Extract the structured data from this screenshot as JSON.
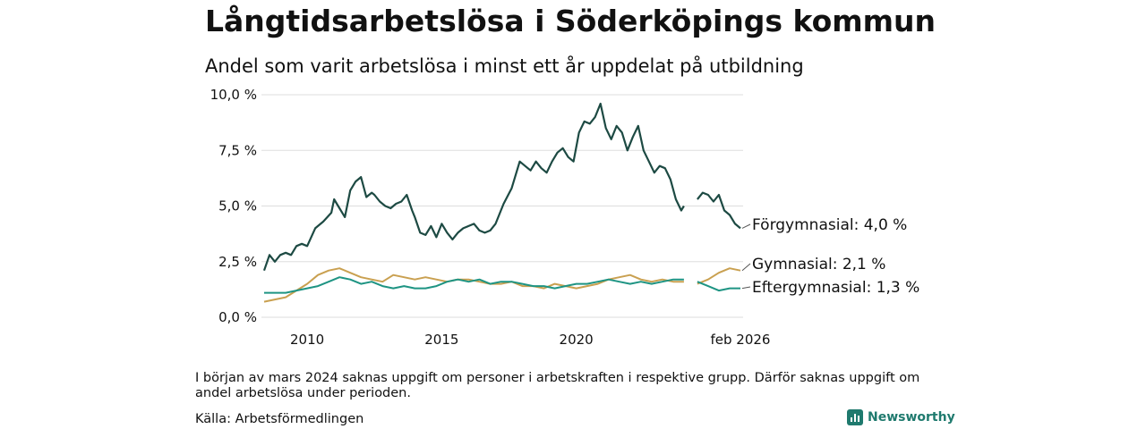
{
  "title": "Långtidsarbetslösa i Söderköpings kommun",
  "subtitle": "Andel som varit arbetslösa i minst ett år uppdelat på utbildning",
  "note": "I början av mars 2024 saknas uppgift om personer i arbetskraften i respektive grupp. Därför saknas uppgift om andel arbetslösa under perioden.",
  "source": "Källa: Arbetsförmedlingen",
  "brand": "Newsworthy",
  "colors": {
    "forgymnasial": "#1d4a43",
    "gymnasial": "#c9a050",
    "eftergymnasial": "#1e9483",
    "grid": "#dddddd",
    "brand": "#1f7a6e"
  },
  "chart_data": {
    "type": "line",
    "title": "Långtidsarbetslösa i Söderköpings kommun",
    "ylabel": "",
    "xlabel": "",
    "ylim": [
      0,
      10
    ],
    "xlim": [
      2008.3,
      2026.2
    ],
    "y_ticks": [
      0,
      2.5,
      5,
      7.5,
      10
    ],
    "y_tick_labels": [
      "0,0 %",
      "2,5 %",
      "5,0 %",
      "7,5 %",
      "10,0 %"
    ],
    "x_ticks": [
      2010,
      2015,
      2020,
      2026.1
    ],
    "x_tick_labels": [
      "2010",
      "2015",
      "2020",
      "feb 2026"
    ],
    "gap": [
      2024.1,
      2024.4
    ],
    "series": [
      {
        "name": "Förgymnasial",
        "end_label": "Förgymnasial: 4,0 %",
        "color_key": "forgymnasial",
        "x": [
          2008.4,
          2008.6,
          2008.8,
          2009.0,
          2009.2,
          2009.4,
          2009.6,
          2009.8,
          2010.0,
          2010.3,
          2010.6,
          2010.9,
          2011.0,
          2011.2,
          2011.4,
          2011.6,
          2011.8,
          2012.0,
          2012.2,
          2012.4,
          2012.5,
          2012.7,
          2012.9,
          2013.1,
          2013.3,
          2013.5,
          2013.7,
          2013.9,
          2014.0,
          2014.2,
          2014.4,
          2014.6,
          2014.8,
          2015.0,
          2015.2,
          2015.4,
          2015.6,
          2015.8,
          2016.0,
          2016.2,
          2016.4,
          2016.6,
          2016.8,
          2017.0,
          2017.3,
          2017.6,
          2017.9,
          2018.1,
          2018.3,
          2018.5,
          2018.7,
          2018.9,
          2019.1,
          2019.3,
          2019.5,
          2019.7,
          2019.9,
          2020.1,
          2020.3,
          2020.5,
          2020.7,
          2020.9,
          2021.1,
          2021.3,
          2021.5,
          2021.7,
          2021.9,
          2022.1,
          2022.3,
          2022.5,
          2022.7,
          2022.9,
          2023.1,
          2023.3,
          2023.5,
          2023.7,
          2023.9,
          2024.0,
          2024.5,
          2024.7,
          2024.9,
          2025.1,
          2025.3,
          2025.5,
          2025.7,
          2025.9,
          2026.1
        ],
        "values": [
          2.1,
          2.8,
          2.5,
          2.8,
          2.9,
          2.8,
          3.2,
          3.3,
          3.2,
          4.0,
          4.3,
          4.7,
          5.3,
          4.9,
          4.5,
          5.7,
          6.1,
          6.3,
          5.4,
          5.6,
          5.5,
          5.2,
          5.0,
          4.9,
          5.1,
          5.2,
          5.5,
          4.8,
          4.5,
          3.8,
          3.7,
          4.1,
          3.6,
          4.2,
          3.8,
          3.5,
          3.8,
          4.0,
          4.1,
          4.2,
          3.9,
          3.8,
          3.9,
          4.2,
          5.1,
          5.8,
          7.0,
          6.8,
          6.6,
          7.0,
          6.7,
          6.5,
          7.0,
          7.4,
          7.6,
          7.2,
          7.0,
          8.3,
          8.8,
          8.7,
          9.0,
          9.6,
          8.5,
          8.0,
          8.6,
          8.3,
          7.5,
          8.1,
          8.6,
          7.5,
          7.0,
          6.5,
          6.8,
          6.7,
          6.2,
          5.3,
          4.8,
          5.0,
          5.3,
          5.6,
          5.5,
          5.2,
          5.5,
          4.8,
          4.6,
          4.2,
          4.0
        ]
      },
      {
        "name": "Gymnasial",
        "end_label": "Gymnasial: 2,1 %",
        "color_key": "gymnasial",
        "x": [
          2008.4,
          2008.8,
          2009.2,
          2009.6,
          2010.0,
          2010.4,
          2010.8,
          2011.2,
          2011.6,
          2012.0,
          2012.4,
          2012.8,
          2013.2,
          2013.6,
          2014.0,
          2014.4,
          2014.8,
          2015.2,
          2015.6,
          2016.0,
          2016.4,
          2016.8,
          2017.2,
          2017.6,
          2018.0,
          2018.4,
          2018.8,
          2019.2,
          2019.6,
          2020.0,
          2020.4,
          2020.8,
          2021.2,
          2021.6,
          2022.0,
          2022.4,
          2022.8,
          2023.2,
          2023.6,
          2024.0,
          2024.5,
          2024.9,
          2025.3,
          2025.7,
          2026.1
        ],
        "values": [
          0.7,
          0.8,
          0.9,
          1.2,
          1.5,
          1.9,
          2.1,
          2.2,
          2.0,
          1.8,
          1.7,
          1.6,
          1.9,
          1.8,
          1.7,
          1.8,
          1.7,
          1.6,
          1.7,
          1.7,
          1.6,
          1.5,
          1.5,
          1.6,
          1.4,
          1.4,
          1.3,
          1.5,
          1.4,
          1.3,
          1.4,
          1.5,
          1.7,
          1.8,
          1.9,
          1.7,
          1.6,
          1.7,
          1.6,
          1.6,
          1.5,
          1.7,
          2.0,
          2.2,
          2.1
        ]
      },
      {
        "name": "Eftergymnasial",
        "end_label": "Eftergymnasial: 1,3 %",
        "color_key": "eftergymnasial",
        "x": [
          2008.4,
          2008.8,
          2009.2,
          2009.6,
          2010.0,
          2010.4,
          2010.8,
          2011.2,
          2011.6,
          2012.0,
          2012.4,
          2012.8,
          2013.2,
          2013.6,
          2014.0,
          2014.4,
          2014.8,
          2015.2,
          2015.6,
          2016.0,
          2016.4,
          2016.8,
          2017.2,
          2017.6,
          2018.0,
          2018.4,
          2018.8,
          2019.2,
          2019.6,
          2020.0,
          2020.4,
          2020.8,
          2021.2,
          2021.6,
          2022.0,
          2022.4,
          2022.8,
          2023.2,
          2023.6,
          2024.0,
          2024.5,
          2024.9,
          2025.3,
          2025.7,
          2026.1
        ],
        "values": [
          1.1,
          1.1,
          1.1,
          1.2,
          1.3,
          1.4,
          1.6,
          1.8,
          1.7,
          1.5,
          1.6,
          1.4,
          1.3,
          1.4,
          1.3,
          1.3,
          1.4,
          1.6,
          1.7,
          1.6,
          1.7,
          1.5,
          1.6,
          1.6,
          1.5,
          1.4,
          1.4,
          1.3,
          1.4,
          1.5,
          1.5,
          1.6,
          1.7,
          1.6,
          1.5,
          1.6,
          1.5,
          1.6,
          1.7,
          1.7,
          1.6,
          1.4,
          1.2,
          1.3,
          1.3
        ]
      }
    ]
  }
}
